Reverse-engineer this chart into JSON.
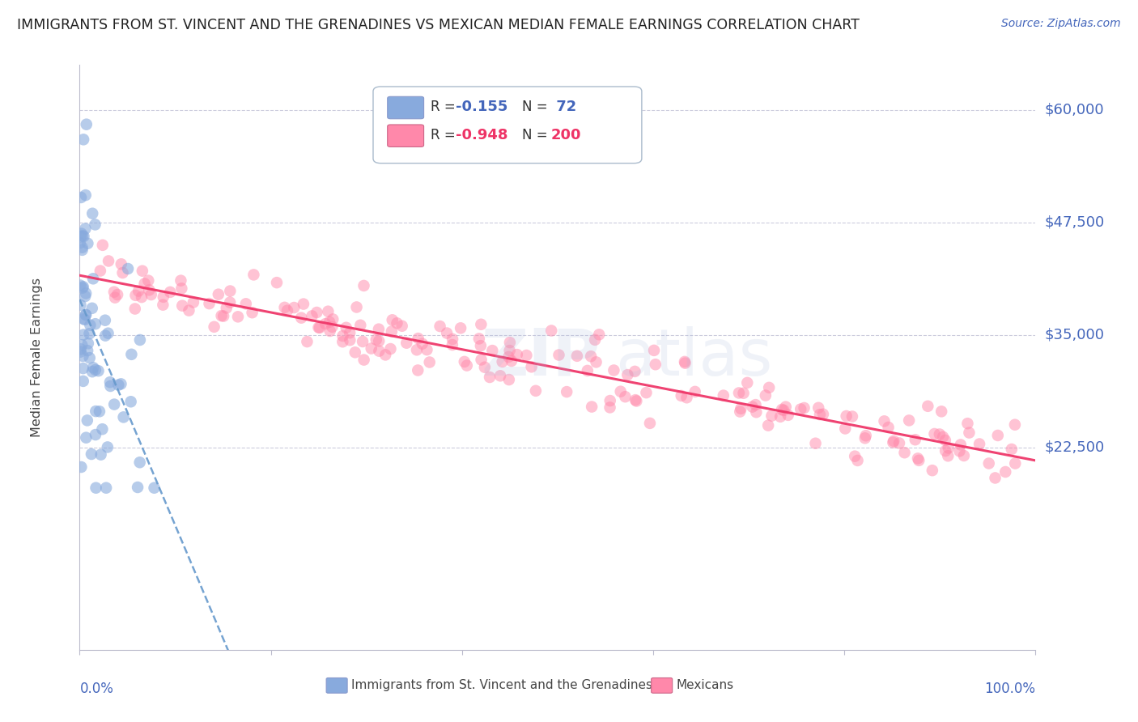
{
  "title": "IMMIGRANTS FROM ST. VINCENT AND THE GRENADINES VS MEXICAN MEDIAN FEMALE EARNINGS CORRELATION CHART",
  "source": "Source: ZipAtlas.com",
  "ylabel": "Median Female Earnings",
  "ymin": 0,
  "ymax": 65000,
  "xmin": 0.0,
  "xmax": 1.0,
  "ytick_positions": [
    22500,
    35000,
    47500,
    60000
  ],
  "ytick_labels": [
    "$22,500",
    "$35,000",
    "$47,500",
    "$60,000"
  ],
  "color_blue": "#88AADD",
  "color_pink": "#FF88AA",
  "color_blue_line": "#6699CC",
  "color_pink_line": "#EE3366",
  "watermark_zip": "ZIP",
  "watermark_atlas": "atlas",
  "title_color": "#222222",
  "axis_label_color": "#4466BB",
  "background_color": "#FFFFFF",
  "grid_color": "#CCCCDD",
  "blue_seed": 42,
  "pink_seed": 77,
  "blue_n": 72,
  "pink_n": 200
}
